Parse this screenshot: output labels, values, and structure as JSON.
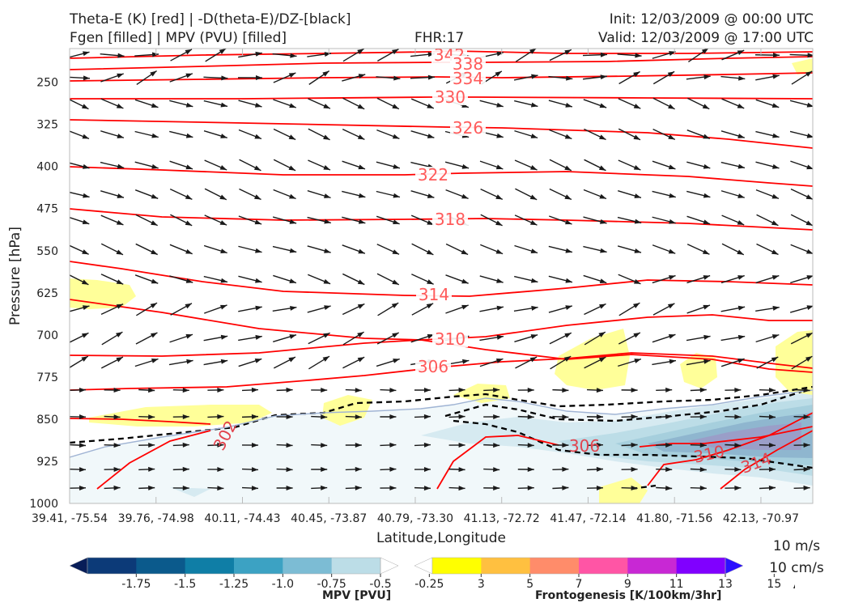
{
  "header": {
    "title_line1": "Theta-E (K) [red] | -D(theta-E)/DZ-[black]",
    "title_line2": "Fgen [filled] | MPV (PVU) [filled]",
    "fhr": "FHR:17",
    "init": "Init: 12/03/2009 @ 00:00 UTC",
    "valid": "Valid: 12/03/2009 @ 17:00 UTC"
  },
  "chart_data": {
    "type": "cross-section",
    "xlabel": "Latitude,Longitude",
    "ylabel": "Pressure [hPa]",
    "y_scale": "linear, inverted",
    "ylim": [
      1000,
      190
    ],
    "yticks": [
      "250",
      "325",
      "400",
      "475",
      "550",
      "625",
      "700",
      "775",
      "850",
      "925",
      "1000"
    ],
    "xticks": [
      "39.41, -75.54",
      "39.76, -74.98",
      "40.11, -74.43",
      "40.45, -73.87",
      "40.79, -73.30",
      "41.13, -72.72",
      "41.47, -72.14",
      "41.80, -71.56",
      "42.13, -70.97"
    ],
    "theta_e_labels": [
      "342",
      "338",
      "334",
      "330",
      "326",
      "322",
      "318",
      "314",
      "310",
      "306",
      "302",
      "306",
      "310",
      "314"
    ],
    "theta_e_color": "#ff0000",
    "stability_color": "#000000",
    "wind_legend": [
      "10 m/s",
      "10 cm/s"
    ],
    "mpv_colorbar": {
      "title": "MPV [PVU]",
      "ticks": [
        "-1.75",
        "-1.5",
        "-1.25",
        "-1.0",
        "-0.75",
        "-0.5",
        "-0.25"
      ],
      "colors": [
        "#081d58",
        "#0c3a78",
        "#0b5a8c",
        "#0f7ea6",
        "#3ca2c3",
        "#7cbcd4",
        "#bcdde7",
        "#ffffff"
      ]
    },
    "fgen_colorbar": {
      "title": "Frontogenesis [K/100km/3hr]",
      "ticks": [
        "3",
        "5",
        "7",
        "9",
        "11",
        "13",
        "15"
      ],
      "colors": [
        "#ffffff",
        "#ffff00",
        "#ffc040",
        "#ff8c6a",
        "#ff55a5",
        "#c828d4",
        "#8000ff",
        "#2a10ff"
      ]
    }
  }
}
